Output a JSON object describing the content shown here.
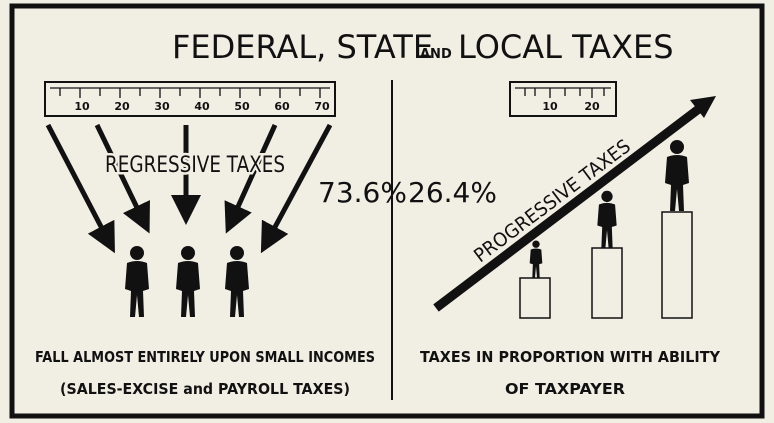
{
  "title_parts": [
    "FEDERAL, STATE",
    "AND",
    "LOCAL TAXES"
  ],
  "left_panel": {
    "ruler_ticks": [
      "10",
      "20",
      "30",
      "40",
      "50",
      "60",
      "70"
    ],
    "label": "REGRESSIVE TAXES",
    "percent": "73.6%",
    "caption": [
      "FALL ALMOST ENTIRELY UPON SMALL INCOMES",
      "(SALES-EXCISE and PAYROLL TAXES)"
    ]
  },
  "right_panel": {
    "ruler_ticks": [
      "10",
      "20"
    ],
    "label": "PROGRESSIVE TAXES",
    "percent": "26.4%",
    "caption": [
      "TAXES IN PROPORTION WITH ABILITY",
      "OF TAXPAYER"
    ]
  }
}
